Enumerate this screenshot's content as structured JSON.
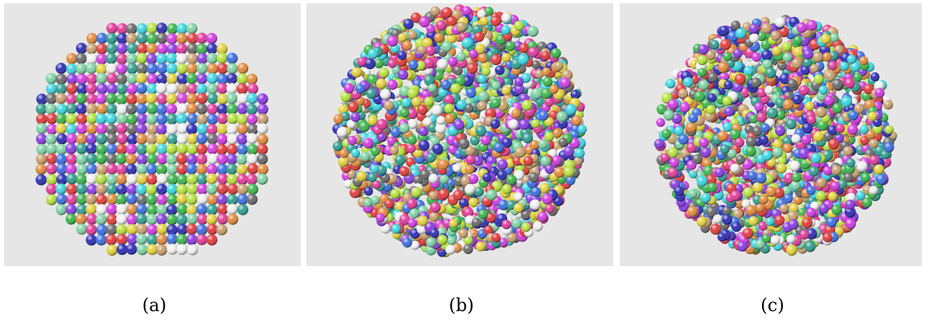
{
  "panels": [
    {
      "id": "a",
      "caption": "(a)",
      "arrangement": "lattice"
    },
    {
      "id": "b",
      "caption": "(b)",
      "arrangement": "random"
    },
    {
      "id": "c",
      "caption": "(c)",
      "arrangement": "random"
    }
  ],
  "colors": {
    "background": "#e6e6e6",
    "sphere_palette": [
      "#e23b3b",
      "#3bb54a",
      "#3b6fe2",
      "#e2d23b",
      "#d23be2",
      "#3bd6e2",
      "#e28a3b",
      "#8a3be2",
      "#2f9e8f",
      "#b5e23b",
      "#e23b9a",
      "#6a6a6a",
      "#2d2db5",
      "#c9a06e",
      "#7fd3a5",
      "#f0f0f0"
    ]
  }
}
